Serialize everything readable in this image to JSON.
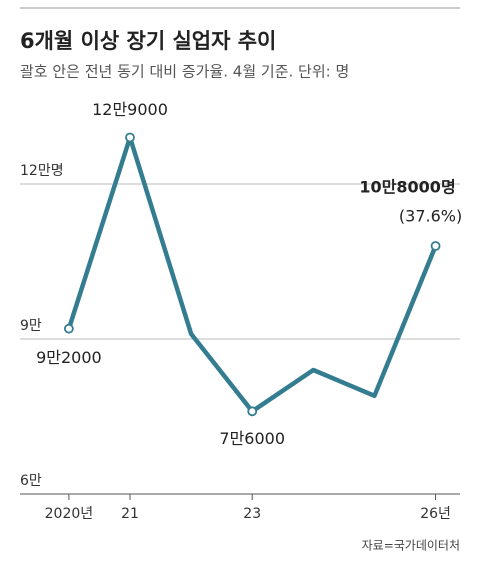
{
  "chart_data": {
    "type": "line",
    "title": "6개월 이상 장기 실업자 추이",
    "subtitle": "괄호 안은 전년 동기 대비 증가율. 4월 기준. 단위: 명",
    "x": [
      2020,
      2021,
      2022,
      2023,
      2024,
      2025,
      2026
    ],
    "series": [
      {
        "name": "장기 실업자",
        "color": "#347d91",
        "values": [
          92000,
          129000,
          91000,
          76000,
          84000,
          79000,
          108000
        ],
        "value_labels": [
          "9만2000",
          "12만9000",
          null,
          "7만6000",
          null,
          null,
          "10만8000명"
        ]
      }
    ],
    "annotation": "(37.6%)",
    "xlim": [
      2019.2,
      2026.4
    ],
    "xticks": [
      {
        "value": 2020,
        "label": "2020년"
      },
      {
        "value": 2021,
        "label": "21"
      },
      {
        "value": 2023,
        "label": "23"
      },
      {
        "value": 2026,
        "label": "26년"
      }
    ],
    "ylim": [
      60000,
      132000
    ],
    "yticks": [
      {
        "value": 60000,
        "label": "6만"
      },
      {
        "value": 90000,
        "label": "9만"
      },
      {
        "value": 120000,
        "label": "12만명"
      }
    ],
    "grid": true,
    "source": "자료=국가데이터처"
  }
}
